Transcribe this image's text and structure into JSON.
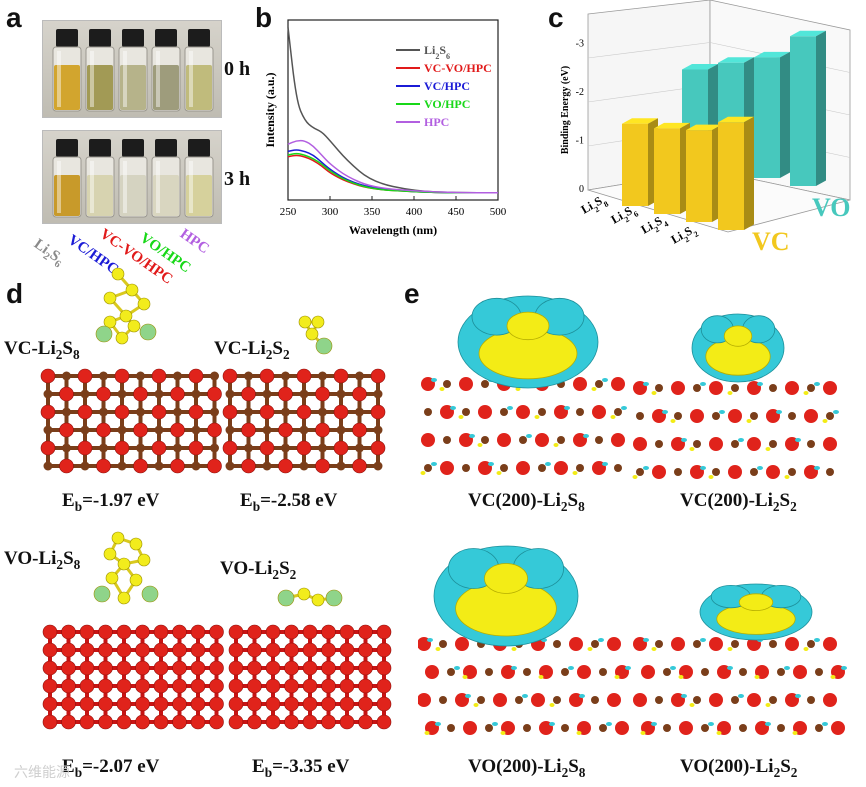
{
  "panels": {
    "a": {
      "letter": "a",
      "time_top": "0 h",
      "time_bottom": "3 h",
      "vial_labels": [
        {
          "main": "Li",
          "sub1": "2",
          "mid": "S",
          "sub2": "6",
          "color": "#8a8a8a"
        },
        {
          "main": "VC/HPC",
          "color": "#1b1bd6"
        },
        {
          "main": "VC-VO/HPC",
          "color": "#e11a1a"
        },
        {
          "main": "VO/HPC",
          "color": "#18d818"
        },
        {
          "main": "HPC",
          "color": "#b25fe0"
        }
      ],
      "vial_colors_top": [
        "#d2a52e",
        "#a29a55",
        "#b6b38a",
        "#9e9c7c",
        "#c0bb7c"
      ],
      "vial_colors_bottom": [
        "#c89a2a",
        "#d7d3b0",
        "#d5d3c1",
        "#d9d6c0",
        "#d6d19c"
      ]
    },
    "b": {
      "letter": "b"
    },
    "c": {
      "letter": "c"
    },
    "d": {
      "letter": "d",
      "systems": [
        {
          "prefix": "VC-Li",
          "sub1": "2",
          "mid": "S",
          "sub2": "8"
        },
        {
          "prefix": "VC-Li",
          "sub1": "2",
          "mid": "S",
          "sub2": "2"
        },
        {
          "prefix": "VO-Li",
          "sub1": "2",
          "mid": "S",
          "sub2": "8"
        },
        {
          "prefix": "VO-Li",
          "sub1": "2",
          "mid": "S",
          "sub2": "2"
        }
      ],
      "energies": [
        {
          "e": "E",
          "sub": "b",
          "val": "=-1.97 eV"
        },
        {
          "e": "E",
          "sub": "b",
          "val": "=-2.58 eV"
        },
        {
          "e": "E",
          "sub": "b",
          "val": "=-2.07 eV"
        },
        {
          "e": "E",
          "sub": "b",
          "val": "=-3.35 eV"
        }
      ]
    },
    "e": {
      "letter": "e",
      "labels": [
        {
          "pre": "VC(200)-Li",
          "sub1": "2",
          "mid": "S",
          "sub2": "8"
        },
        {
          "pre": "VC(200)-Li",
          "sub1": "2",
          "mid": "S",
          "sub2": "2"
        },
        {
          "pre": "VO(200)-Li",
          "sub1": "2",
          "mid": "S",
          "sub2": "8"
        },
        {
          "pre": "VO(200)-Li",
          "sub1": "2",
          "mid": "S",
          "sub2": "2"
        }
      ]
    }
  },
  "chart_data": [
    {
      "type": "line",
      "title": "",
      "xlabel": "Wavelength (nm)",
      "ylabel": "Intensity (a.u.)",
      "xlim": [
        250,
        500
      ],
      "ylim": [
        0,
        1
      ],
      "xticks": [
        "250",
        "300",
        "350",
        "400",
        "450",
        "500"
      ],
      "x": [
        250,
        260,
        270,
        280,
        290,
        300,
        320,
        350,
        400,
        450,
        500
      ],
      "series": [
        {
          "name": "Li2S6",
          "label_main": "Li",
          "label_sub1": "2",
          "label_mid": "S",
          "label_sub2": "6",
          "color": "#555555",
          "values": [
            0.96,
            0.55,
            0.44,
            0.4,
            0.38,
            0.33,
            0.22,
            0.1,
            0.05,
            0.04,
            0.04
          ]
        },
        {
          "name": "VC-VO/HPC",
          "color": "#e11a1a",
          "values": [
            0.24,
            0.25,
            0.24,
            0.22,
            0.19,
            0.15,
            0.1,
            0.06,
            0.045,
            0.04,
            0.04
          ]
        },
        {
          "name": "VC/HPC",
          "color": "#1b1bd6",
          "values": [
            0.27,
            0.28,
            0.27,
            0.25,
            0.21,
            0.17,
            0.11,
            0.065,
            0.045,
            0.04,
            0.04
          ]
        },
        {
          "name": "VO/HPC",
          "color": "#18d818",
          "values": [
            0.25,
            0.26,
            0.25,
            0.23,
            0.2,
            0.16,
            0.105,
            0.06,
            0.045,
            0.04,
            0.04
          ]
        },
        {
          "name": "HPC",
          "color": "#b25fe0",
          "values": [
            0.31,
            0.33,
            0.33,
            0.3,
            0.25,
            0.2,
            0.13,
            0.07,
            0.05,
            0.04,
            0.04
          ]
        }
      ]
    },
    {
      "type": "bar",
      "title": "",
      "ylabel": "Binding Energy (eV)",
      "ylim": [
        0,
        -3
      ],
      "yticks": [
        "0",
        "-1",
        "-2",
        "-3"
      ],
      "categories": [
        {
          "main": "Li",
          "sub1": "2",
          "mid": "S",
          "sub2": "8"
        },
        {
          "main": "Li",
          "sub1": "2",
          "mid": "S",
          "sub2": "6"
        },
        {
          "main": "Li",
          "sub1": "2",
          "mid": "S",
          "sub2": "4"
        },
        {
          "main": "Li",
          "sub1": "2",
          "mid": "S",
          "sub2": "2"
        }
      ],
      "series": [
        {
          "name": "VC",
          "color": "#f2c81e",
          "values": [
            -1.97,
            -2.05,
            -2.2,
            -2.58
          ]
        },
        {
          "name": "VO",
          "color": "#47c8bd",
          "values": [
            -2.07,
            -2.4,
            -2.7,
            -3.35
          ]
        }
      ]
    }
  ],
  "watermark": "六维能源"
}
